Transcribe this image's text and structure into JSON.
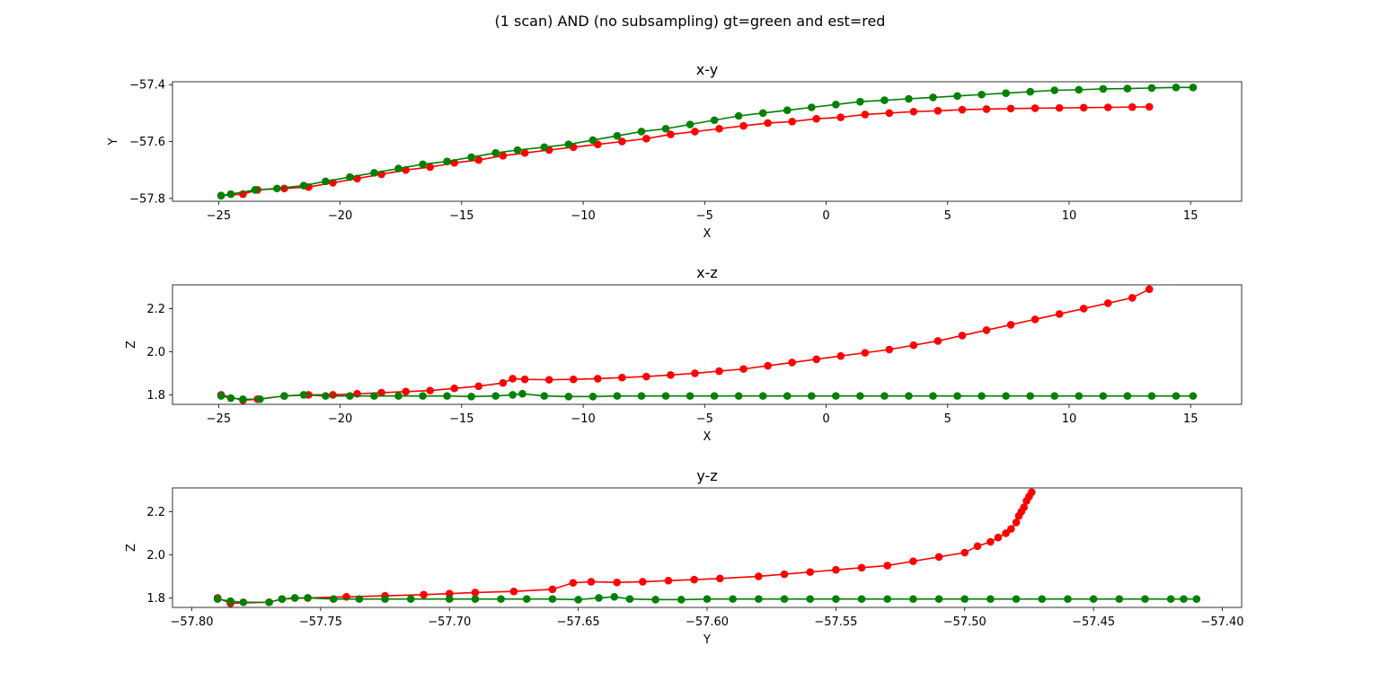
{
  "figure": {
    "suptitle": "(1 scan) AND (no subsampling) gt=green and est=red",
    "colors": {
      "gt": "#008000",
      "est": "#ff0000",
      "axis": "#000000",
      "background": "#ffffff"
    }
  },
  "chart_data": [
    {
      "type": "line",
      "title": "x-y",
      "xlabel": "X",
      "ylabel": "Y",
      "xlim": [
        -26.9,
        17.1
      ],
      "ylim": [
        -57.81,
        -57.39
      ],
      "xticks": [
        -25,
        -20,
        -15,
        -10,
        -5,
        0,
        5,
        10,
        15
      ],
      "yticks": [
        -57.8,
        -57.6,
        -57.4
      ],
      "xtick_labels": [
        "−25",
        "−20",
        "−15",
        "−10",
        "−5",
        "0",
        "5",
        "10",
        "15"
      ],
      "ytick_labels": [
        "−57.8",
        "−57.6",
        "−57.4"
      ],
      "markers": true,
      "series": [
        {
          "role": "gt",
          "color": "#008000",
          "x": [
            -24.9,
            -24.5,
            -23.5,
            -22.6,
            -21.5,
            -20.6,
            -19.6,
            -18.6,
            -17.6,
            -16.6,
            -15.6,
            -14.6,
            -13.6,
            -12.7,
            -11.6,
            -10.6,
            -9.6,
            -8.6,
            -7.6,
            -6.6,
            -5.6,
            -4.6,
            -3.6,
            -2.6,
            -1.6,
            -0.6,
            0.4,
            1.4,
            2.4,
            3.4,
            4.4,
            5.4,
            6.4,
            7.4,
            8.4,
            9.4,
            10.4,
            11.4,
            12.4,
            13.4,
            14.4,
            15.1
          ],
          "y": [
            -57.79,
            -57.785,
            -57.77,
            -57.765,
            -57.755,
            -57.74,
            -57.725,
            -57.71,
            -57.695,
            -57.68,
            -57.67,
            -57.655,
            -57.64,
            -57.63,
            -57.62,
            -57.61,
            -57.595,
            -57.58,
            -57.565,
            -57.555,
            -57.54,
            -57.525,
            -57.51,
            -57.5,
            -57.49,
            -57.48,
            -57.47,
            -57.46,
            -57.455,
            -57.45,
            -57.445,
            -57.44,
            -57.435,
            -57.43,
            -57.425,
            -57.42,
            -57.418,
            -57.415,
            -57.414,
            -57.412,
            -57.41,
            -57.41
          ]
        },
        {
          "role": "est",
          "color": "#ff0000",
          "x": [
            -24.9,
            -24.0,
            -23.4,
            -22.3,
            -21.3,
            -20.3,
            -19.3,
            -18.3,
            -17.3,
            -16.3,
            -15.3,
            -14.3,
            -13.3,
            -12.4,
            -11.4,
            -10.4,
            -9.4,
            -8.4,
            -7.4,
            -6.4,
            -5.4,
            -4.4,
            -3.4,
            -2.4,
            -1.4,
            -0.4,
            0.6,
            1.6,
            2.6,
            3.6,
            4.6,
            5.6,
            6.6,
            7.6,
            8.6,
            9.6,
            10.6,
            11.6,
            12.6,
            13.3
          ],
          "y": [
            -57.79,
            -57.785,
            -57.77,
            -57.765,
            -57.76,
            -57.745,
            -57.73,
            -57.715,
            -57.7,
            -57.69,
            -57.675,
            -57.665,
            -57.65,
            -57.64,
            -57.63,
            -57.62,
            -57.61,
            -57.6,
            -57.59,
            -57.575,
            -57.565,
            -57.555,
            -57.545,
            -57.535,
            -57.53,
            -57.52,
            -57.515,
            -57.505,
            -57.5,
            -57.495,
            -57.492,
            -57.488,
            -57.486,
            -57.484,
            -57.483,
            -57.482,
            -57.481,
            -57.48,
            -57.479,
            -57.478
          ]
        }
      ]
    },
    {
      "type": "line",
      "title": "x-z",
      "xlabel": "X",
      "ylabel": "Z",
      "xlim": [
        -26.9,
        17.1
      ],
      "ylim": [
        1.756,
        2.31
      ],
      "xticks": [
        -25,
        -20,
        -15,
        -10,
        -5,
        0,
        5,
        10,
        15
      ],
      "yticks": [
        1.8,
        2.0,
        2.2
      ],
      "xtick_labels": [
        "−25",
        "−20",
        "−15",
        "−10",
        "−5",
        "0",
        "5",
        "10",
        "15"
      ],
      "ytick_labels": [
        "1.8",
        "2.0",
        "2.2"
      ],
      "markers": true,
      "series": [
        {
          "role": "gt",
          "color": "#008000",
          "x": [
            -24.9,
            -24.5,
            -24.0,
            -23.3,
            -22.3,
            -21.5,
            -20.6,
            -19.6,
            -18.6,
            -17.6,
            -16.6,
            -15.6,
            -14.6,
            -13.6,
            -12.9,
            -12.5,
            -11.6,
            -10.6,
            -9.6,
            -8.6,
            -7.6,
            -6.6,
            -5.6,
            -4.6,
            -3.6,
            -2.6,
            -1.6,
            -0.6,
            0.4,
            1.4,
            2.4,
            3.4,
            4.4,
            5.4,
            6.4,
            7.4,
            8.4,
            9.4,
            10.4,
            11.4,
            12.4,
            13.4,
            14.4,
            15.1
          ],
          "y": [
            1.795,
            1.785,
            1.78,
            1.78,
            1.795,
            1.8,
            1.795,
            1.795,
            1.795,
            1.795,
            1.795,
            1.795,
            1.792,
            1.795,
            1.8,
            1.805,
            1.795,
            1.792,
            1.792,
            1.795,
            1.795,
            1.795,
            1.795,
            1.795,
            1.795,
            1.795,
            1.795,
            1.795,
            1.795,
            1.795,
            1.795,
            1.795,
            1.795,
            1.795,
            1.795,
            1.795,
            1.795,
            1.795,
            1.795,
            1.795,
            1.795,
            1.795,
            1.795,
            1.795
          ]
        },
        {
          "role": "est",
          "color": "#ff0000",
          "x": [
            -24.9,
            -24.0,
            -23.4,
            -22.3,
            -21.3,
            -20.3,
            -19.3,
            -18.3,
            -17.3,
            -16.3,
            -15.3,
            -14.3,
            -13.3,
            -12.9,
            -12.4,
            -11.4,
            -10.4,
            -9.4,
            -8.4,
            -7.4,
            -6.4,
            -5.4,
            -4.4,
            -3.4,
            -2.4,
            -1.4,
            -0.4,
            0.6,
            1.6,
            2.6,
            3.6,
            4.6,
            5.6,
            6.6,
            7.6,
            8.6,
            9.6,
            10.6,
            11.6,
            12.6,
            13.3
          ],
          "y": [
            1.8,
            1.775,
            1.78,
            1.795,
            1.8,
            1.8,
            1.805,
            1.81,
            1.815,
            1.82,
            1.83,
            1.84,
            1.855,
            1.875,
            1.872,
            1.87,
            1.872,
            1.875,
            1.88,
            1.885,
            1.892,
            1.9,
            1.91,
            1.92,
            1.935,
            1.95,
            1.965,
            1.98,
            1.995,
            2.01,
            2.03,
            2.05,
            2.075,
            2.1,
            2.125,
            2.15,
            2.175,
            2.2,
            2.225,
            2.25,
            2.29
          ]
        }
      ]
    },
    {
      "type": "line",
      "title": "y-z",
      "xlabel": "Y",
      "ylabel": "Z",
      "xlim": [
        -57.8075,
        -57.3925
      ],
      "ylim": [
        1.756,
        2.31
      ],
      "xticks": [
        -57.8,
        -57.75,
        -57.7,
        -57.65,
        -57.6,
        -57.55,
        -57.5,
        -57.45,
        -57.4
      ],
      "yticks": [
        1.8,
        2.0,
        2.2
      ],
      "xtick_labels": [
        "−57.80",
        "−57.75",
        "−57.70",
        "−57.65",
        "−57.60",
        "−57.55",
        "−57.50",
        "−57.45",
        "−57.40"
      ],
      "ytick_labels": [
        "1.8",
        "2.0",
        "2.2"
      ],
      "markers": true,
      "series": [
        {
          "role": "gt",
          "color": "#008000",
          "x": [
            -57.79,
            -57.785,
            -57.78,
            -57.77,
            -57.765,
            -57.76,
            -57.755,
            -57.745,
            -57.735,
            -57.725,
            -57.715,
            -57.7,
            -57.69,
            -57.68,
            -57.67,
            -57.66,
            -57.65,
            -57.642,
            -57.636,
            -57.63,
            -57.62,
            -57.61,
            -57.6,
            -57.59,
            -57.58,
            -57.57,
            -57.56,
            -57.55,
            -57.54,
            -57.53,
            -57.52,
            -57.51,
            -57.5,
            -57.49,
            -57.48,
            -57.47,
            -57.46,
            -57.45,
            -57.44,
            -57.43,
            -57.42,
            -57.415,
            -57.41
          ],
          "y": [
            1.795,
            1.785,
            1.78,
            1.78,
            1.795,
            1.8,
            1.8,
            1.795,
            1.795,
            1.795,
            1.795,
            1.795,
            1.795,
            1.795,
            1.795,
            1.795,
            1.792,
            1.8,
            1.805,
            1.795,
            1.792,
            1.792,
            1.795,
            1.795,
            1.795,
            1.795,
            1.795,
            1.795,
            1.795,
            1.795,
            1.795,
            1.795,
            1.795,
            1.795,
            1.795,
            1.795,
            1.795,
            1.795,
            1.795,
            1.795,
            1.795,
            1.795,
            1.795
          ]
        },
        {
          "role": "est",
          "color": "#ff0000",
          "x": [
            -57.79,
            -57.785,
            -57.77,
            -57.765,
            -57.755,
            -57.74,
            -57.725,
            -57.71,
            -57.7,
            -57.69,
            -57.675,
            -57.66,
            -57.652,
            -57.645,
            -57.635,
            -57.625,
            -57.615,
            -57.605,
            -57.595,
            -57.58,
            -57.57,
            -57.56,
            -57.55,
            -57.54,
            -57.53,
            -57.52,
            -57.51,
            -57.5,
            -57.495,
            -57.49,
            -57.487,
            -57.484,
            -57.482,
            -57.48,
            -57.479,
            -57.478,
            -57.477,
            -57.476,
            -57.475,
            -57.474
          ],
          "y": [
            1.8,
            1.775,
            1.78,
            1.795,
            1.8,
            1.805,
            1.81,
            1.815,
            1.82,
            1.825,
            1.83,
            1.84,
            1.87,
            1.875,
            1.872,
            1.875,
            1.88,
            1.885,
            1.89,
            1.9,
            1.91,
            1.92,
            1.93,
            1.94,
            1.95,
            1.97,
            1.99,
            2.01,
            2.04,
            2.06,
            2.08,
            2.1,
            2.12,
            2.15,
            2.18,
            2.2,
            2.22,
            2.25,
            2.27,
            2.29
          ]
        }
      ]
    }
  ]
}
